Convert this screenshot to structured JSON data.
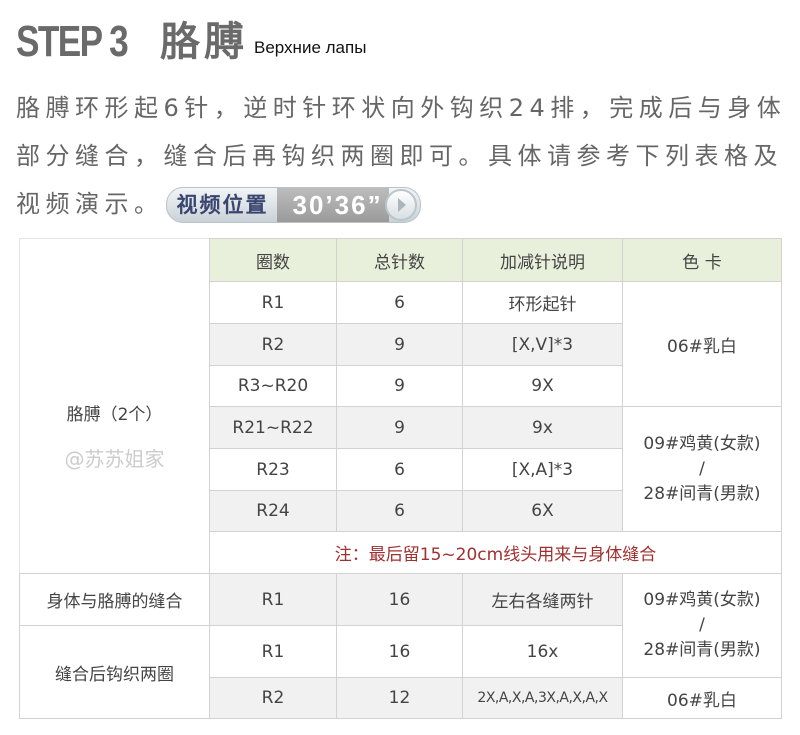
{
  "header": {
    "step": "STEP 3",
    "title": "胳膊",
    "subtitle": "Верхние лапы"
  },
  "intro": {
    "text": "胳膊环形起6针，逆时针环状向外钩织24排，完成后与身体部分缝合，缝合后再钩织两圈即可。具体请参考下列表格及视频演示。",
    "video_label": "视频位置",
    "video_time": "30’36”",
    "play_icon": "play-icon"
  },
  "table": {
    "headers": [
      "圈数",
      "总针数",
      "加减针说明",
      "色 卡"
    ],
    "arm_label": "胳膊（2个）",
    "watermark": "@苏苏姐家",
    "arm_rows": [
      {
        "round": "R1",
        "total": "6",
        "note": "环形起针"
      },
      {
        "round": "R2",
        "total": "9",
        "note": "[X,V]*3"
      },
      {
        "round": "R3~R20",
        "total": "9",
        "note": "9X"
      },
      {
        "round": "R21~R22",
        "total": "9",
        "note": "9x"
      },
      {
        "round": "R23",
        "total": "6",
        "note": "[X,A]*3"
      },
      {
        "round": "R24",
        "total": "6",
        "note": "6X"
      }
    ],
    "color_a": "06#乳白",
    "color_b1": "09#鸡黄(女款)",
    "color_sep": "/",
    "color_b2": "28#间青(男款)",
    "remark": "注：最后留15~20cm线头用来与身体缝合",
    "join_label": "身体与胳膊的缝合",
    "join_row": {
      "round": "R1",
      "total": "16",
      "note": "左右各缝两针"
    },
    "after_label": "缝合后钩织两圈",
    "after_rows": [
      {
        "round": "R1",
        "total": "16",
        "note": "16x"
      },
      {
        "round": "R2",
        "total": "12",
        "note": "2X,A,X,A,3X,A,X,A,X"
      }
    ],
    "after_color_r2": "06#乳白"
  }
}
